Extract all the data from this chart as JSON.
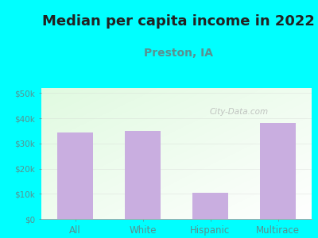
{
  "title": "Median per capita income in 2022",
  "subtitle": "Preston, IA",
  "categories": [
    "All",
    "White",
    "Hispanic",
    "Multirace"
  ],
  "values": [
    34500,
    35000,
    10500,
    38000
  ],
  "bar_color": "#c9aee0",
  "title_fontsize": 13,
  "subtitle_fontsize": 10,
  "subtitle_color": "#5a9090",
  "title_color": "#222222",
  "background_color": "#00ffff",
  "plot_bg_color_topleft": "#d8f0d8",
  "plot_bg_color_bottomright": "#f8fff8",
  "yticks": [
    0,
    10000,
    20000,
    30000,
    40000,
    50000
  ],
  "ytick_labels": [
    "$0",
    "$10k",
    "$20k",
    "$30k",
    "$40k",
    "$50k"
  ],
  "ylim": [
    0,
    52000
  ],
  "tick_color": "#5a9090",
  "watermark": "City-Data.com",
  "bar_width": 0.52
}
